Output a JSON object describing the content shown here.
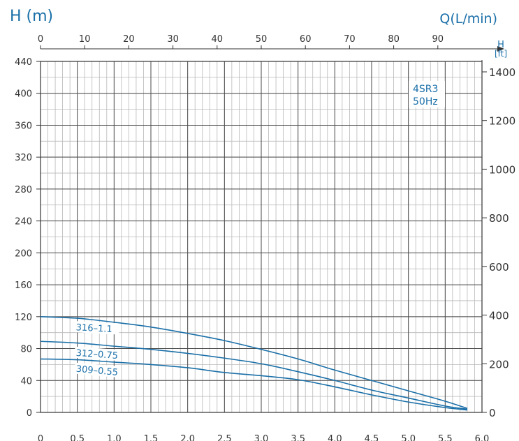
{
  "chart_data": {
    "type": "line",
    "y_label_left": "H (m)",
    "x_label_top": "Q(L/min)",
    "y_label_right_top": "H",
    "y_label_right_unit": "[ft]",
    "model": "4SR3",
    "frequency": "50Hz",
    "x_top_ticks": [
      "0",
      "10",
      "20",
      "30",
      "40",
      "50",
      "60",
      "70",
      "80",
      "90"
    ],
    "x_bottom_ticks": [
      "0",
      "0.5",
      "1.0",
      "1.5",
      "2.0",
      "2.5",
      "3.0",
      "3.5",
      "4.0",
      "4.5",
      "5.0",
      "5.5",
      "6.0"
    ],
    "y_left_ticks": [
      "0",
      "40",
      "80",
      "120",
      "160",
      "200",
      "240",
      "280",
      "320",
      "360",
      "400",
      "440"
    ],
    "y_right_ticks": [
      "0",
      "200",
      "400",
      "600",
      "800",
      "1000",
      "1200",
      "1400"
    ],
    "xlim_m3h": [
      0,
      6.0
    ],
    "xlim_lmin": [
      0,
      100
    ],
    "ylim_m": [
      0,
      440
    ],
    "ylim_ft": [
      0,
      1443
    ],
    "grid": true,
    "series": [
      {
        "name": "316–1.1",
        "x": [
          0,
          0.5,
          1.0,
          1.5,
          2.0,
          2.5,
          3.0,
          3.5,
          4.0,
          4.5,
          5.0,
          5.5,
          5.8
        ],
        "y": [
          120,
          118,
          113,
          107,
          99,
          90,
          79,
          67,
          53,
          40,
          27,
          14,
          5
        ]
      },
      {
        "name": "312–0.75",
        "x": [
          0,
          0.5,
          1.0,
          1.5,
          2.0,
          2.5,
          3.0,
          3.5,
          4.0,
          4.5,
          5.0,
          5.5,
          5.8
        ],
        "y": [
          89,
          87,
          83,
          79,
          74,
          68,
          61,
          51,
          40,
          28,
          18,
          8,
          4
        ]
      },
      {
        "name": "309–0.55",
        "x": [
          0,
          0.5,
          1.0,
          1.5,
          2.0,
          2.5,
          3.0,
          3.5,
          4.0,
          4.5,
          5.0,
          5.5,
          5.8
        ],
        "y": [
          67,
          66,
          63,
          60,
          56,
          50,
          46,
          41,
          32,
          22,
          13,
          6,
          3
        ]
      }
    ]
  },
  "colors": {
    "curve": "#1a6fa8",
    "grid_major": "#4a4a4a",
    "grid_minor": "#b8b8b8",
    "axis_title": "#1a6fa8"
  }
}
